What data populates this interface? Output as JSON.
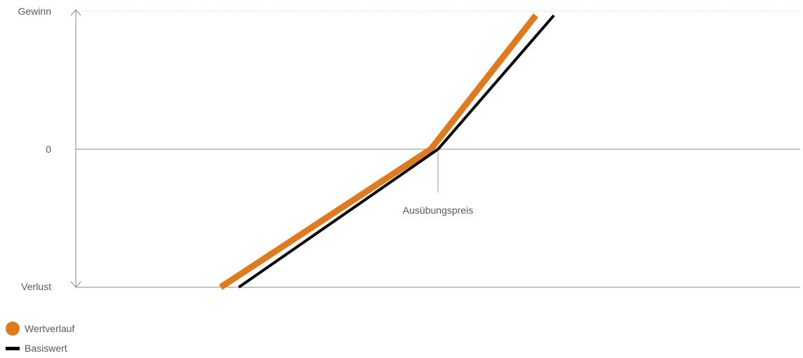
{
  "chart_data": {
    "type": "line",
    "y_axis": {
      "top_label": "Gewinn",
      "zero_label": "0",
      "bottom_label": "Verlust"
    },
    "annotation": {
      "label": "Ausübungspreis",
      "strike": 0
    },
    "xlim": [
      -1,
      1
    ],
    "ylim": [
      -1,
      1
    ],
    "series": [
      {
        "name": "Wertverlauf",
        "color": "#E07A1F",
        "points": [
          [
            -0.6,
            -1.0
          ],
          [
            -0.02,
            0.0
          ],
          [
            0.27,
            1.0
          ]
        ]
      },
      {
        "name": "Basiswert",
        "color": "#000000",
        "points": [
          [
            -0.55,
            -1.0
          ],
          [
            0.0,
            0.0
          ],
          [
            0.32,
            1.0
          ]
        ]
      }
    ]
  }
}
